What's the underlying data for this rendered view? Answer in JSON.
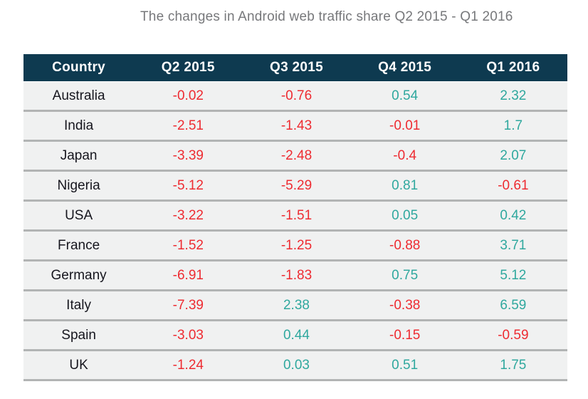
{
  "title": "The changes in Android web traffic share Q2 2015 - Q1 2016",
  "colors": {
    "header_bg": "#0e3a50",
    "header_text": "#ffffff",
    "row_bg": "#f0f1f1",
    "divider": "#b2b4b4",
    "title_text": "#77787b",
    "country_text": "#16161e",
    "negative_value": "#ee2b31",
    "positive_value": "#2fa89e"
  },
  "chart_data": {
    "type": "table",
    "title": "The changes in Android web traffic share Q2 2015 - Q1 2016",
    "columns": [
      "Country",
      "Q2 2015",
      "Q3 2015",
      "Q4 2015",
      "Q1 2016"
    ],
    "rows": [
      {
        "country": "Australia",
        "values": [
          "-0.02",
          "-0.76",
          "0.54",
          "2.32"
        ]
      },
      {
        "country": "India",
        "values": [
          "-2.51",
          "-1.43",
          "-0.01",
          "1.7"
        ]
      },
      {
        "country": "Japan",
        "values": [
          "-3.39",
          "-2.48",
          "-0.4",
          "2.07"
        ]
      },
      {
        "country": "Nigeria",
        "values": [
          "-5.12",
          "-5.29",
          "0.81",
          "-0.61"
        ]
      },
      {
        "country": "USA",
        "values": [
          "-3.22",
          "-1.51",
          "0.05",
          "0.42"
        ]
      },
      {
        "country": "France",
        "values": [
          "-1.52",
          "-1.25",
          "-0.88",
          "3.71"
        ]
      },
      {
        "country": "Germany",
        "values": [
          "-6.91",
          "-1.83",
          "0.75",
          "5.12"
        ]
      },
      {
        "country": "Italy",
        "values": [
          "-7.39",
          "2.38",
          "-0.38",
          "6.59"
        ]
      },
      {
        "country": "Spain",
        "values": [
          "-3.03",
          "0.44",
          "-0.15",
          "-0.59"
        ]
      },
      {
        "country": "UK",
        "values": [
          "-1.24",
          "0.03",
          "0.51",
          "1.75"
        ]
      }
    ],
    "value_color_rule": "negative values red, positive values teal",
    "layout": "header row dark navy, uniform light-gray body rows separated by gray divider lines"
  }
}
